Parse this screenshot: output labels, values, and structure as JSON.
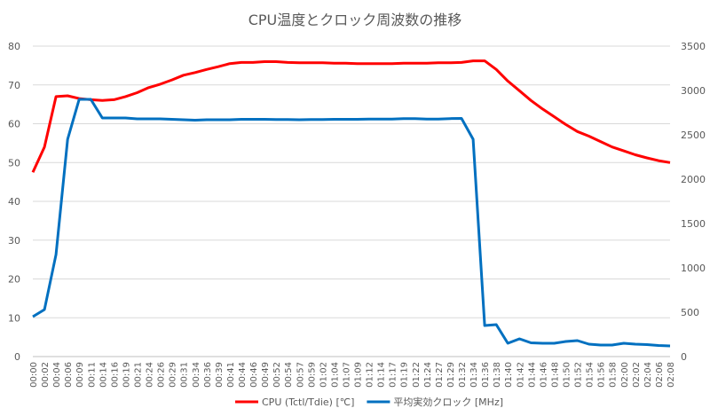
{
  "chart_data": {
    "type": "line",
    "title": "CPU温度とクロック周波数の推移",
    "x": [
      "00:00",
      "00:02",
      "00:04",
      "00:06",
      "00:09",
      "00:11",
      "00:14",
      "00:16",
      "00:19",
      "00:21",
      "00:24",
      "00:26",
      "00:29",
      "00:31",
      "00:34",
      "00:36",
      "00:39",
      "00:41",
      "00:44",
      "00:46",
      "00:49",
      "00:52",
      "00:54",
      "00:57",
      "00:59",
      "01:02",
      "01:04",
      "01:07",
      "01:09",
      "01:12",
      "01:14",
      "01:17",
      "01:19",
      "01:22",
      "01:24",
      "01:27",
      "01:29",
      "01:32",
      "01:34",
      "01:36",
      "01:38",
      "01:40",
      "01:42",
      "01:44",
      "01:46",
      "01:48",
      "01:50",
      "01:52",
      "01:54",
      "01:56",
      "01:58",
      "02:00",
      "02:02",
      "02:04",
      "02:06",
      "02:08"
    ],
    "y_left": {
      "ticks": [
        0,
        10,
        20,
        30,
        40,
        50,
        60,
        70,
        80
      ],
      "range": [
        0,
        80
      ]
    },
    "y_right": {
      "ticks": [
        0,
        500,
        1000,
        1500,
        2000,
        2500,
        3000,
        3500
      ],
      "range": [
        0,
        3500
      ]
    },
    "grid": true,
    "legend": "bottom",
    "series": [
      {
        "name": "CPU (Tctl/Tdie) [℃]",
        "axis": "left",
        "color": "#FF0000",
        "values": [
          47.5,
          54,
          67,
          67.2,
          66.5,
          66.2,
          66,
          66.2,
          67,
          68,
          69.3,
          70.2,
          71.3,
          72.5,
          73.2,
          74,
          74.7,
          75.5,
          75.8,
          75.8,
          76,
          76,
          75.8,
          75.7,
          75.7,
          75.7,
          75.6,
          75.6,
          75.5,
          75.5,
          75.5,
          75.5,
          75.6,
          75.6,
          75.6,
          75.7,
          75.7,
          75.8,
          76.2,
          76.2,
          74,
          71,
          68.5,
          66,
          63.8,
          61.8,
          59.8,
          58,
          56.8,
          55.4,
          54,
          53,
          52,
          51.2,
          50.5,
          50
        ]
      },
      {
        "name": "平均実効クロック [MHz]",
        "axis": "right",
        "color": "#0070C0",
        "values": [
          450,
          530,
          1150,
          2450,
          2900,
          2900,
          2690,
          2690,
          2690,
          2680,
          2680,
          2680,
          2675,
          2670,
          2665,
          2670,
          2670,
          2670,
          2675,
          2675,
          2675,
          2672,
          2672,
          2670,
          2672,
          2672,
          2675,
          2675,
          2675,
          2678,
          2678,
          2678,
          2683,
          2683,
          2678,
          2678,
          2683,
          2685,
          2450,
          350,
          360,
          150,
          200,
          155,
          150,
          150,
          170,
          180,
          140,
          130,
          130,
          150,
          140,
          135,
          125,
          120
        ]
      }
    ]
  }
}
